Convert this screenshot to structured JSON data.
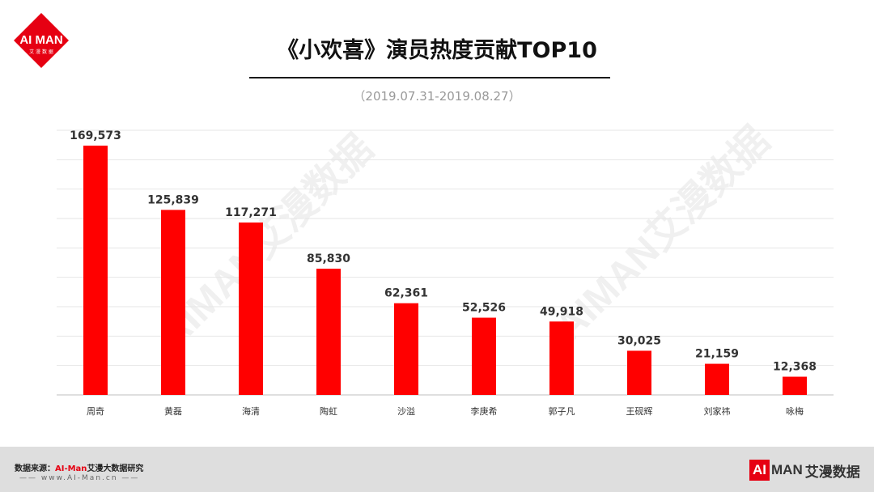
{
  "brand": {
    "logo_top": "AI MAN",
    "logo_sub": "艾 漫 数 据",
    "watermark": "AIMAN艾漫数据",
    "footer_logo_box": "AI",
    "footer_logo_man": "MAN",
    "footer_logo_cn": "艾漫数据",
    "accent": "#e60012"
  },
  "header": {
    "title": "《小欢喜》演员热度贡献TOP10",
    "subtitle": "（2019.07.31-2019.08.27）"
  },
  "footer": {
    "source_label": "数据来源：",
    "source_brand": "AI-Man",
    "source_rest": "艾漫大数据研究",
    "website": "—— www.AI-Man.cn ——"
  },
  "chart_data": {
    "type": "bar",
    "title": "《小欢喜》演员热度贡献TOP10",
    "subtitle": "（2019.07.31-2019.08.27）",
    "categories": [
      "周奇",
      "黄磊",
      "海清",
      "陶虹",
      "沙溢",
      "李庚希",
      "郭子凡",
      "王砚辉",
      "刘家祎",
      "咏梅"
    ],
    "values": [
      169573,
      125839,
      117271,
      85830,
      62361,
      52526,
      49918,
      30025,
      21159,
      12368
    ],
    "value_labels": [
      "169,573",
      "125,839",
      "117,271",
      "85,830",
      "62,361",
      "52,526",
      "49,918",
      "30,025",
      "21,159",
      "12,368"
    ],
    "ylim": [
      0,
      180000
    ],
    "grid": true,
    "bar_color": "#ff0000"
  }
}
